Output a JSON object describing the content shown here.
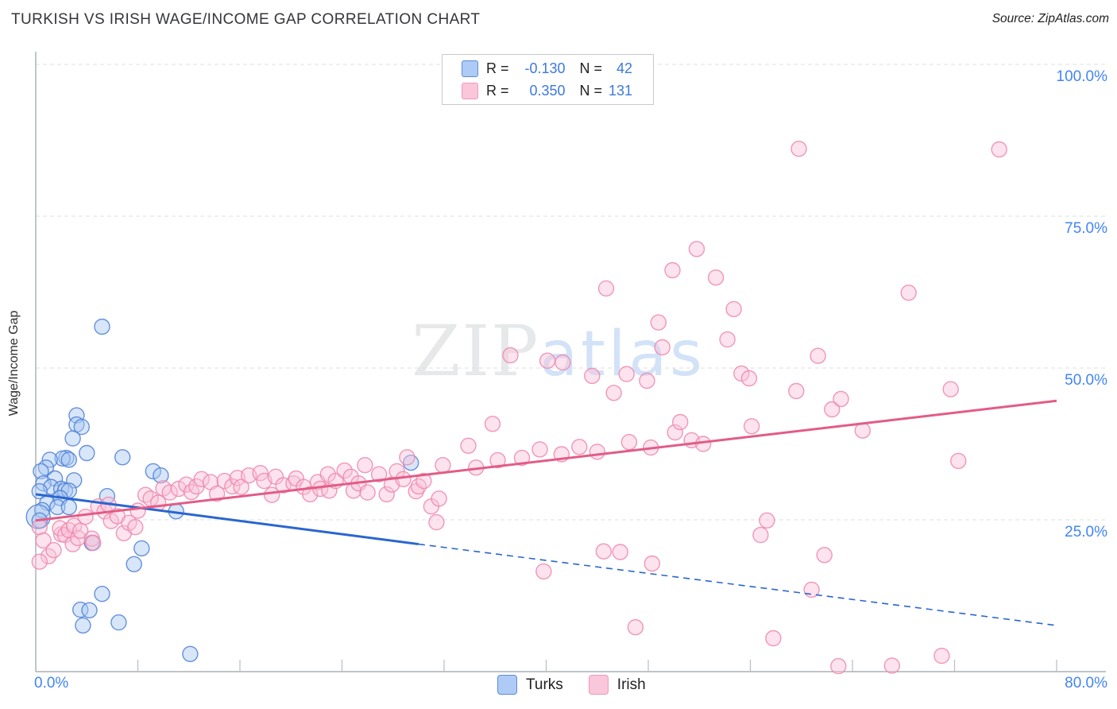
{
  "title": "TURKISH VS IRISH WAGE/INCOME GAP CORRELATION CHART",
  "source": "Source: ZipAtlas.com",
  "watermark": {
    "zip": "ZIP",
    "atlas": "atlas"
  },
  "y_axis_title": "Wage/Income Gap",
  "axes": {
    "y_ticks": [
      "100.0%",
      "75.0%",
      "50.0%",
      "25.0%"
    ],
    "x_min_label": "0.0%",
    "x_max_label": "80.0%"
  },
  "legend_box": {
    "rows": [
      {
        "series": "Turks",
        "r_label": "R =",
        "r_value": "-0.130",
        "n_label": "N =",
        "n_value": "42"
      },
      {
        "series": "Irish",
        "r_label": "R =",
        "r_value": "0.350",
        "n_label": "N =",
        "n_value": "131"
      }
    ]
  },
  "bottom_legend": {
    "turks": "Turks",
    "irish": "Irish"
  },
  "colors": {
    "turks_fill": "#a9c7f2",
    "turks_stroke": "#4d7fd6",
    "irish_fill": "#f9c2d6",
    "irish_stroke": "#ee86ad",
    "turks_trend": "#2a66cf",
    "irish_trend": "#e25c86",
    "axis": "#9aa0a6",
    "gridline": "#dfdfdf",
    "tick_text": "#4285f4"
  },
  "chart_data": {
    "type": "scatter",
    "x_range": [
      0,
      80
    ],
    "y_range": [
      0,
      100
    ],
    "x_gridline_values": [
      8,
      16,
      24,
      32,
      40,
      48,
      56,
      64,
      72,
      80
    ],
    "y_gridline_values": [
      25,
      50,
      75,
      100
    ],
    "series": [
      {
        "name": "Turks",
        "R": -0.13,
        "N": 42,
        "points": [
          [
            5.2,
            56.8
          ],
          [
            3.2,
            42.2
          ],
          [
            3.2,
            40.7
          ],
          [
            3.6,
            40.3
          ],
          [
            2.9,
            38.4
          ],
          [
            4.0,
            36.0
          ],
          [
            6.8,
            35.3
          ],
          [
            2.4,
            35.2
          ],
          [
            2.1,
            35.1
          ],
          [
            2.6,
            34.9
          ],
          [
            1.1,
            34.9
          ],
          [
            0.8,
            33.6
          ],
          [
            0.4,
            33.0
          ],
          [
            9.2,
            33.0
          ],
          [
            9.8,
            32.3
          ],
          [
            1.5,
            31.8
          ],
          [
            3.0,
            31.5
          ],
          [
            0.6,
            31.0
          ],
          [
            1.2,
            30.4
          ],
          [
            2.0,
            30.1
          ],
          [
            2.3,
            29.8
          ],
          [
            2.6,
            29.8
          ],
          [
            0.3,
            29.7
          ],
          [
            5.6,
            28.9
          ],
          [
            1.9,
            28.6
          ],
          [
            0.9,
            27.8
          ],
          [
            1.7,
            27.1
          ],
          [
            2.6,
            27.1
          ],
          [
            0.5,
            26.6
          ],
          [
            11.0,
            26.4
          ],
          [
            0.2,
            25.5,
            15
          ],
          [
            0.3,
            24.9
          ],
          [
            4.4,
            21.2
          ],
          [
            8.3,
            20.3
          ],
          [
            7.7,
            17.7
          ],
          [
            5.2,
            12.8
          ],
          [
            3.5,
            10.2
          ],
          [
            4.2,
            10.1
          ],
          [
            6.5,
            8.1
          ],
          [
            3.7,
            7.6
          ],
          [
            12.1,
            2.9
          ],
          [
            29.4,
            34.4
          ]
        ]
      },
      {
        "name": "Irish",
        "R": 0.35,
        "N": 131,
        "points": [
          [
            0.3,
            23.8
          ],
          [
            0.6,
            21.6
          ],
          [
            1.0,
            19.0
          ],
          [
            1.4,
            20.0
          ],
          [
            0.3,
            18.1
          ],
          [
            2.0,
            22.6
          ],
          [
            1.9,
            23.6
          ],
          [
            2.3,
            22.5
          ],
          [
            2.6,
            23.3
          ],
          [
            2.9,
            21.0
          ],
          [
            3.0,
            24.0
          ],
          [
            3.3,
            22.0
          ],
          [
            3.5,
            23.2
          ],
          [
            3.9,
            25.5
          ],
          [
            4.4,
            21.9
          ],
          [
            4.5,
            21.2
          ],
          [
            4.9,
            27.2
          ],
          [
            5.4,
            26.4
          ],
          [
            5.7,
            27.5
          ],
          [
            5.9,
            24.8
          ],
          [
            6.4,
            25.6
          ],
          [
            6.9,
            22.8
          ],
          [
            7.3,
            24.5
          ],
          [
            7.8,
            23.8
          ],
          [
            8.0,
            26.5
          ],
          [
            8.6,
            29.1
          ],
          [
            9.0,
            28.5
          ],
          [
            9.6,
            27.8
          ],
          [
            10.0,
            30.2
          ],
          [
            10.5,
            29.5
          ],
          [
            11.2,
            30.1
          ],
          [
            11.8,
            30.8
          ],
          [
            12.2,
            29.6
          ],
          [
            12.6,
            30.5
          ],
          [
            13.0,
            31.7
          ],
          [
            13.7,
            31.2
          ],
          [
            14.2,
            29.3
          ],
          [
            14.8,
            31.4
          ],
          [
            15.4,
            30.5
          ],
          [
            15.8,
            31.9
          ],
          [
            16.1,
            30.4
          ],
          [
            16.7,
            32.3
          ],
          [
            17.6,
            32.7
          ],
          [
            17.9,
            31.4
          ],
          [
            18.5,
            29.1
          ],
          [
            18.8,
            32.1
          ],
          [
            19.4,
            30.7
          ],
          [
            20.2,
            31.0
          ],
          [
            20.4,
            31.8
          ],
          [
            21.0,
            30.4
          ],
          [
            21.5,
            29.2
          ],
          [
            22.1,
            31.2
          ],
          [
            22.3,
            30.1
          ],
          [
            22.9,
            32.5
          ],
          [
            23.0,
            29.8
          ],
          [
            23.5,
            31.4
          ],
          [
            24.2,
            33.1
          ],
          [
            24.7,
            32.1
          ],
          [
            24.9,
            29.8
          ],
          [
            25.3,
            31.0
          ],
          [
            25.8,
            34.0
          ],
          [
            26.0,
            29.5
          ],
          [
            26.9,
            32.5
          ],
          [
            27.5,
            29.2
          ],
          [
            27.9,
            30.8
          ],
          [
            28.3,
            33.0
          ],
          [
            28.8,
            31.7
          ],
          [
            29.1,
            35.3
          ],
          [
            29.8,
            29.7
          ],
          [
            30.0,
            30.5
          ],
          [
            30.4,
            31.4
          ],
          [
            31.0,
            27.2
          ],
          [
            31.4,
            24.6
          ],
          [
            31.6,
            28.5
          ],
          [
            31.9,
            34.0
          ],
          [
            33.9,
            37.2
          ],
          [
            34.5,
            33.6
          ],
          [
            35.8,
            40.8
          ],
          [
            36.2,
            34.8
          ],
          [
            37.2,
            52.1
          ],
          [
            38.1,
            35.2
          ],
          [
            39.5,
            36.6
          ],
          [
            39.8,
            16.5
          ],
          [
            40.1,
            51.2
          ],
          [
            41.2,
            35.8
          ],
          [
            41.3,
            50.9
          ],
          [
            42.6,
            37.0
          ],
          [
            43.6,
            48.7
          ],
          [
            44.0,
            36.2
          ],
          [
            44.5,
            19.8
          ],
          [
            44.7,
            63.1
          ],
          [
            45.3,
            45.9
          ],
          [
            45.8,
            19.7
          ],
          [
            46.3,
            49.0
          ],
          [
            46.5,
            37.8
          ],
          [
            47.0,
            7.3
          ],
          [
            47.9,
            47.9
          ],
          [
            48.2,
            36.9
          ],
          [
            48.3,
            17.8
          ],
          [
            48.8,
            57.5
          ],
          [
            49.1,
            53.4
          ],
          [
            49.9,
            66.1
          ],
          [
            50.1,
            39.4
          ],
          [
            50.5,
            41.1
          ],
          [
            51.4,
            38.1
          ],
          [
            51.8,
            69.6
          ],
          [
            52.3,
            37.5
          ],
          [
            53.3,
            64.9
          ],
          [
            54.2,
            54.7
          ],
          [
            54.7,
            59.7
          ],
          [
            55.3,
            49.1
          ],
          [
            55.9,
            48.3
          ],
          [
            56.1,
            40.4
          ],
          [
            56.8,
            22.5
          ],
          [
            57.3,
            24.9
          ],
          [
            57.8,
            5.5
          ],
          [
            59.6,
            46.2
          ],
          [
            59.8,
            86.1
          ],
          [
            60.8,
            13.5
          ],
          [
            61.3,
            52.0
          ],
          [
            61.8,
            19.2
          ],
          [
            62.4,
            43.2
          ],
          [
            62.9,
            0.9
          ],
          [
            63.1,
            44.9
          ],
          [
            64.8,
            39.7
          ],
          [
            67.1,
            1.0
          ],
          [
            68.4,
            62.4
          ],
          [
            71.0,
            2.6
          ],
          [
            71.7,
            46.5
          ],
          [
            72.3,
            34.7
          ],
          [
            75.5,
            86.0
          ]
        ]
      }
    ],
    "trend_lines": [
      {
        "series": "Turks",
        "segments": [
          {
            "from": [
              0,
              29.2
            ],
            "to": [
              30,
              21.0
            ],
            "style": "solid"
          },
          {
            "from": [
              30,
              21.0
            ],
            "to": [
              80,
              7.6
            ],
            "style": "dashed"
          }
        ]
      },
      {
        "series": "Irish",
        "segments": [
          {
            "from": [
              0,
              24.9
            ],
            "to": [
              80,
              44.6
            ],
            "style": "solid"
          }
        ]
      }
    ]
  }
}
